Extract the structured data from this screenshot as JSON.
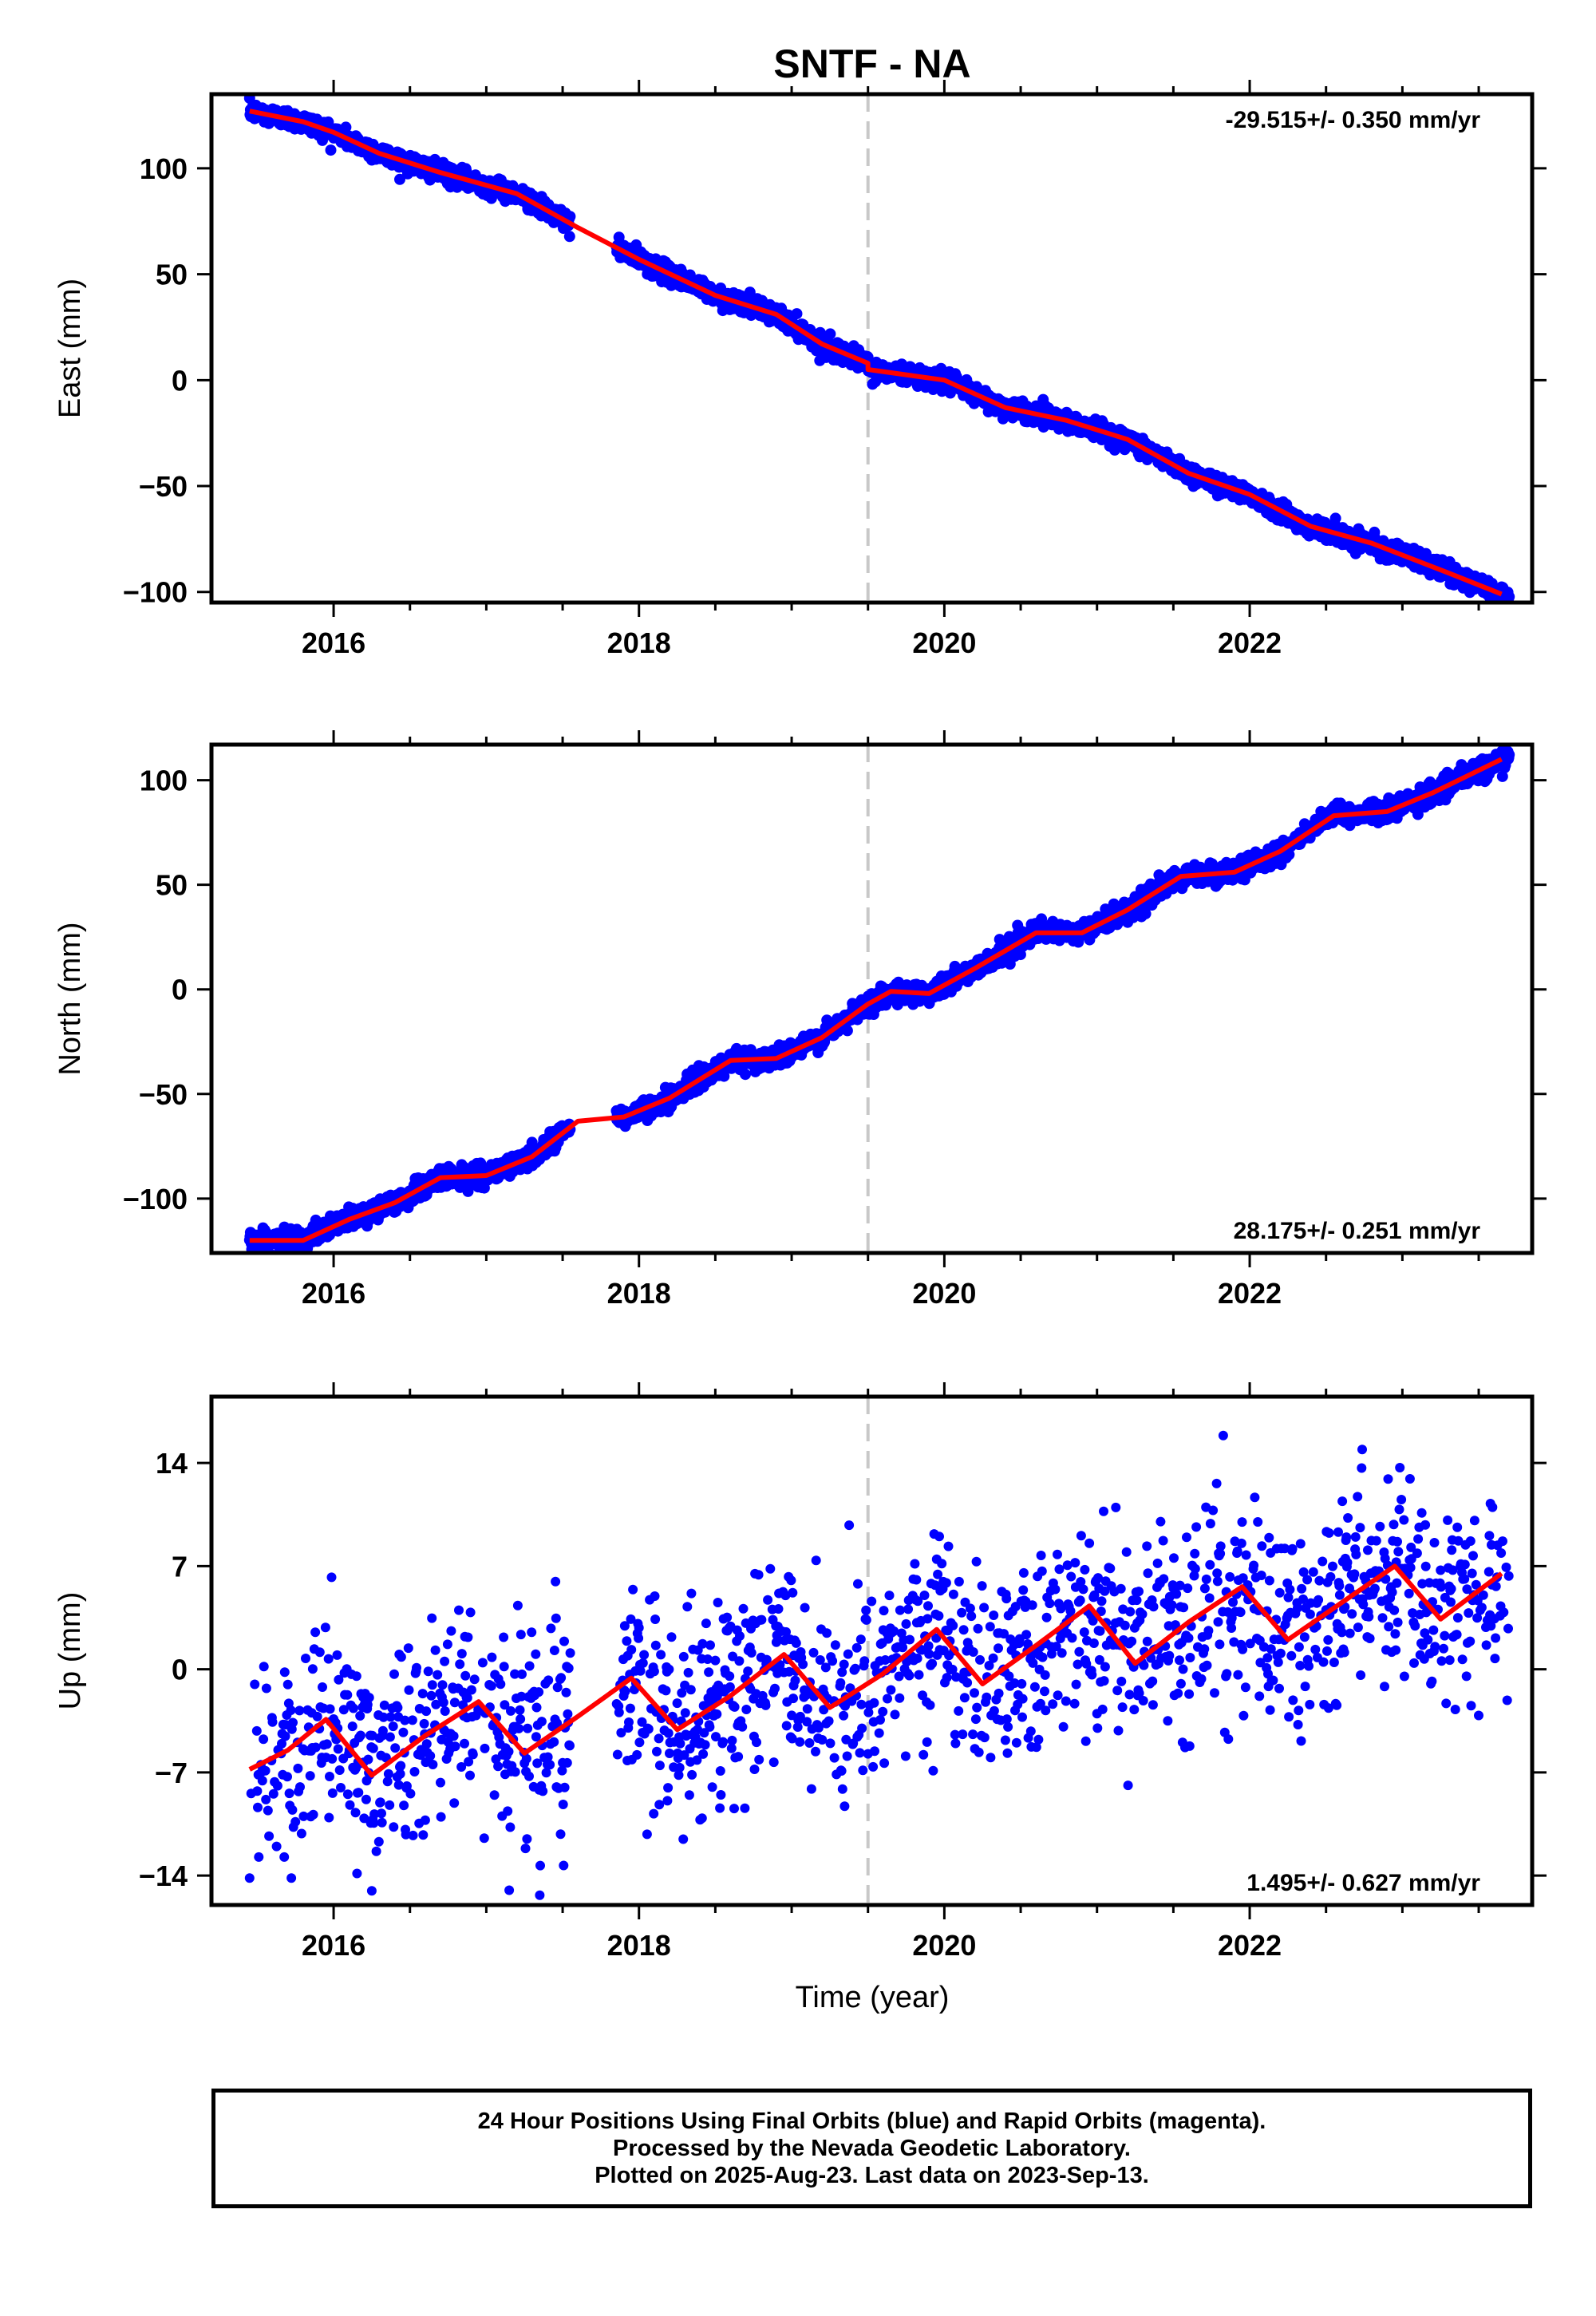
{
  "title": "SNTF - NA",
  "colors": {
    "data": "#0000ff",
    "model": "#ff0000",
    "event_line": "#c8c8c8",
    "frame": "#000000"
  },
  "xaxis": {
    "label": "Time (year)",
    "ticks": [
      "2016",
      "2018",
      "2020",
      "2022"
    ],
    "range": [
      2015.2,
      2023.85
    ]
  },
  "event_line_year": 2019.5,
  "panels": [
    {
      "key": "east",
      "ylabel": "East (mm)",
      "ylim": [
        -105,
        135
      ],
      "yticks": [
        {
          "v": 100,
          "t": "100"
        },
        {
          "v": 50,
          "t": "50"
        },
        {
          "v": 0,
          "t": "0"
        },
        {
          "v": -50,
          "t": "−50"
        },
        {
          "v": -100,
          "t": "−100"
        }
      ],
      "rate": "-29.515+/- 0.350 mm/yr",
      "rate_position": "top-right",
      "trend": {
        "start_year": 2015.5,
        "start_value": 127,
        "slope_mm_per_yr": -29.515
      },
      "model": [
        [
          2015.45,
          127
        ],
        [
          2015.8,
          122
        ],
        [
          2016.0,
          117
        ],
        [
          2016.3,
          107
        ],
        [
          2016.7,
          98
        ],
        [
          2017.2,
          88
        ],
        [
          2017.6,
          72
        ],
        [
          2018.0,
          57
        ],
        [
          2018.5,
          40
        ],
        [
          2018.9,
          31
        ],
        [
          2019.2,
          17
        ],
        [
          2019.5,
          8
        ],
        [
          2019.5,
          5
        ],
        [
          2020.0,
          0
        ],
        [
          2020.4,
          -13
        ],
        [
          2020.8,
          -19
        ],
        [
          2021.2,
          -28
        ],
        [
          2021.6,
          -44
        ],
        [
          2022.0,
          -54
        ],
        [
          2022.4,
          -69
        ],
        [
          2022.8,
          -77
        ],
        [
          2023.3,
          -91
        ],
        [
          2023.65,
          -101
        ]
      ],
      "noise_mm": 2.2
    },
    {
      "key": "north",
      "ylabel": "North (mm)",
      "ylim": [
        -126,
        117
      ],
      "yticks": [
        {
          "v": 100,
          "t": "100"
        },
        {
          "v": 50,
          "t": "50"
        },
        {
          "v": 0,
          "t": "0"
        },
        {
          "v": -50,
          "t": "−50"
        },
        {
          "v": -100,
          "t": "−100"
        }
      ],
      "rate": "28.175+/- 0.251 mm/yr",
      "rate_position": "bottom-right",
      "trend": {
        "start_year": 2015.5,
        "start_value": -120,
        "slope_mm_per_yr": 28.175
      },
      "model": [
        [
          2015.45,
          -120
        ],
        [
          2015.8,
          -120
        ],
        [
          2016.1,
          -110
        ],
        [
          2016.4,
          -102
        ],
        [
          2016.7,
          -90
        ],
        [
          2017.0,
          -89
        ],
        [
          2017.3,
          -80
        ],
        [
          2017.6,
          -63
        ],
        [
          2017.9,
          -61
        ],
        [
          2018.2,
          -52
        ],
        [
          2018.6,
          -34
        ],
        [
          2018.9,
          -33
        ],
        [
          2019.2,
          -23
        ],
        [
          2019.5,
          -7
        ],
        [
          2019.65,
          -1
        ],
        [
          2019.9,
          -2
        ],
        [
          2020.2,
          10
        ],
        [
          2020.6,
          27
        ],
        [
          2020.9,
          27
        ],
        [
          2021.2,
          38
        ],
        [
          2021.55,
          54
        ],
        [
          2021.9,
          56
        ],
        [
          2022.2,
          66
        ],
        [
          2022.55,
          83
        ],
        [
          2022.9,
          85
        ],
        [
          2023.2,
          94
        ],
        [
          2023.65,
          110
        ]
      ],
      "noise_mm": 2.4
    },
    {
      "key": "up",
      "ylabel": "Up (mm)",
      "ylim": [
        -16,
        18.5
      ],
      "yticks": [
        {
          "v": 14,
          "t": "14"
        },
        {
          "v": 7,
          "t": "7"
        },
        {
          "v": 0,
          "t": "0"
        },
        {
          "v": -7,
          "t": "−7"
        },
        {
          "v": -14,
          "t": "−14"
        }
      ],
      "rate": "1.495+/- 0.627 mm/yr",
      "rate_position": "bottom-right",
      "trend": {
        "start_year": 2015.5,
        "start_value": -4.9,
        "slope_mm_per_yr": 1.495
      },
      "model": [
        [
          2015.45,
          -6.8
        ],
        [
          2015.7,
          -5.5
        ],
        [
          2015.95,
          -3.4
        ],
        [
          2016.25,
          -7.2
        ],
        [
          2016.6,
          -4.5
        ],
        [
          2016.95,
          -2.2
        ],
        [
          2017.25,
          -5.7
        ],
        [
          2017.6,
          -3.2
        ],
        [
          2017.95,
          -0.6
        ],
        [
          2018.25,
          -4.1
        ],
        [
          2018.6,
          -1.8
        ],
        [
          2018.95,
          1.0
        ],
        [
          2019.25,
          -2.6
        ],
        [
          2019.6,
          -0.3
        ],
        [
          2019.95,
          2.7
        ],
        [
          2020.25,
          -1.0
        ],
        [
          2020.6,
          1.6
        ],
        [
          2020.95,
          4.3
        ],
        [
          2021.25,
          0.4
        ],
        [
          2021.6,
          3.2
        ],
        [
          2021.95,
          5.6
        ],
        [
          2022.25,
          2.0
        ],
        [
          2022.6,
          4.5
        ],
        [
          2022.95,
          7.0
        ],
        [
          2023.25,
          3.4
        ],
        [
          2023.65,
          6.5
        ]
      ],
      "noise_mm": 3.4
    }
  ],
  "caption": {
    "line1": "24 Hour Positions Using Final Orbits (blue) and Rapid Orbits (magenta).",
    "line2": "Processed by the Nevada Geodetic Laboratory.",
    "line3": "Plotted on 2025-Aug-23. Last data on 2023-Sep-13."
  },
  "chart_data": [
    {
      "type": "scatter",
      "title": "SNTF - NA",
      "ylabel": "East (mm)",
      "xlabel": "",
      "xlim": [
        2015.2,
        2023.85
      ],
      "ylim": [
        -105,
        135
      ],
      "series": [
        {
          "values_note": "daily positions (blue)",
          "x": [
            2015.5,
            2016.0,
            2017.0,
            2018.0,
            2019.0,
            2019.5,
            2020.0,
            2021.0,
            2022.0,
            2023.0,
            2023.7
          ],
          "y": [
            129,
            117,
            88,
            57,
            27,
            6,
            0,
            -28,
            -54,
            -83,
            -99
          ]
        }
      ],
      "annotation": "-29.515+/- 0.350 mm/yr"
    },
    {
      "type": "scatter",
      "ylabel": "North (mm)",
      "xlim": [
        2015.2,
        2023.85
      ],
      "ylim": [
        -126,
        117
      ],
      "series": [
        {
          "x": [
            2015.5,
            2016.0,
            2017.0,
            2018.0,
            2019.0,
            2019.5,
            2020.0,
            2021.0,
            2022.0,
            2023.0,
            2023.7
          ],
          "y": [
            -120,
            -117,
            -89,
            -59,
            -30,
            -7,
            3,
            33,
            61,
            87,
            109
          ]
        }
      ],
      "annotation": "28.175+/- 0.251 mm/yr"
    },
    {
      "type": "scatter",
      "ylabel": "Up (mm)",
      "xlabel": "Time (year)",
      "xlim": [
        2015.2,
        2023.85
      ],
      "ylim": [
        -16,
        18.5
      ],
      "series": [
        {
          "x": [
            2015.5,
            2016.0,
            2017.0,
            2018.0,
            2019.0,
            2019.5,
            2020.0,
            2021.0,
            2022.0,
            2023.0,
            2023.7
          ],
          "y": [
            -6.5,
            -3.5,
            -2.2,
            -0.6,
            0.5,
            -0.3,
            2.5,
            4.0,
            5.5,
            6.8,
            6.5
          ]
        }
      ],
      "annotation": "1.495+/- 0.627 mm/yr"
    }
  ]
}
